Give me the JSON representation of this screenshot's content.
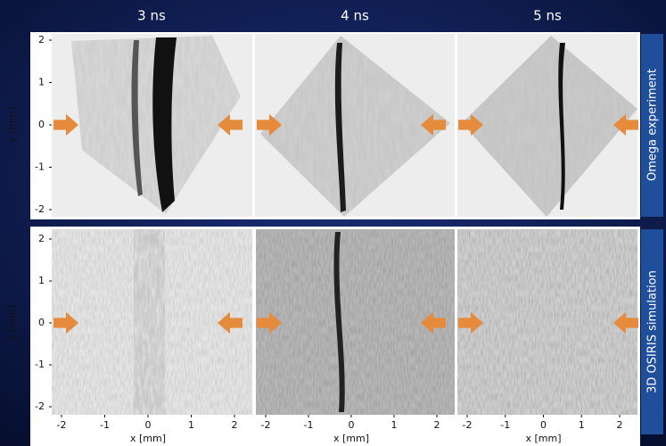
{
  "columns": [
    "3 ns",
    "4 ns",
    "5 ns"
  ],
  "rows": [
    {
      "label": "Omega experiment",
      "y_axis": {
        "label": "y [mm]",
        "ticks": [
          2,
          1,
          0,
          -1,
          -2
        ]
      }
    },
    {
      "label": "3D OSIRIS simulation",
      "y_axis": {
        "label": "y [mm]",
        "ticks": [
          2,
          1,
          0,
          -1,
          -2
        ]
      }
    }
  ],
  "x_axis": {
    "label": "x [mm]",
    "ticks": [
      -2,
      -1,
      0,
      1,
      2
    ]
  }
}
